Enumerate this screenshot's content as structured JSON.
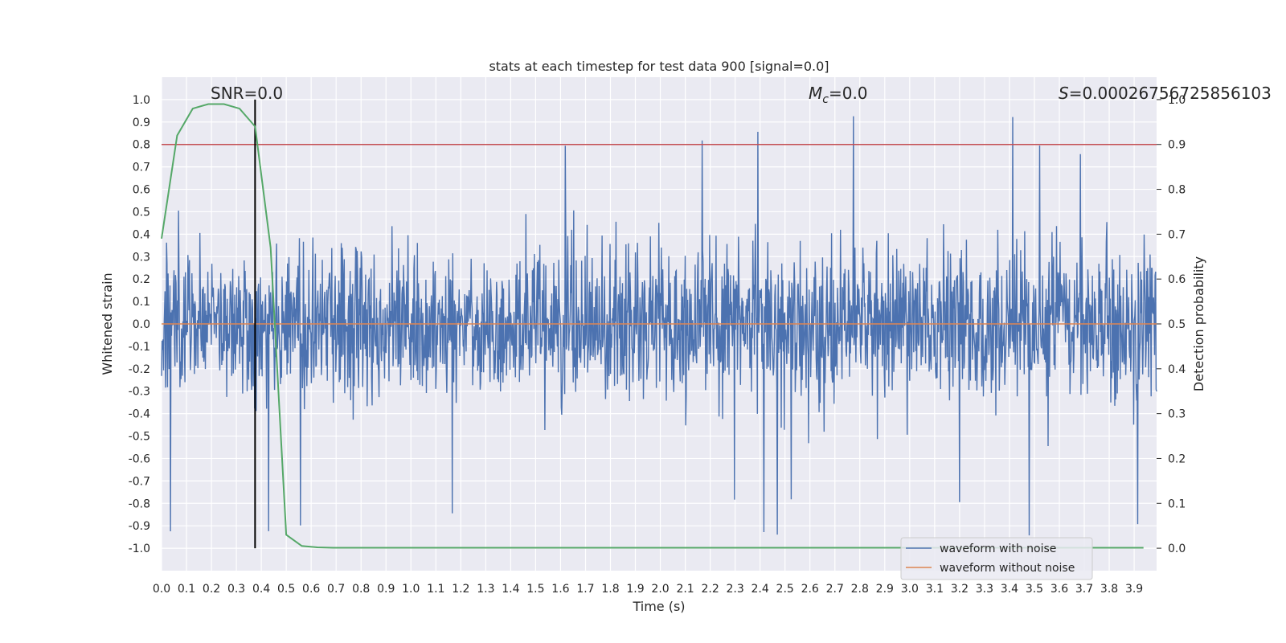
{
  "chart_data": {
    "type": "line",
    "title": "stats at each timestep for test data 900 [signal=0.0]",
    "xlabel": "Time (s)",
    "ylabel": "Whitened strain",
    "y2label": "Detection probability",
    "xlim": [
      0.0,
      3.99
    ],
    "ylim": [
      -1.1,
      1.1
    ],
    "y2lim": [
      -0.05,
      1.05
    ],
    "x_ticks": [
      "0.0",
      "0.1",
      "0.2",
      "0.3",
      "0.4",
      "0.5",
      "0.6",
      "0.7",
      "0.8",
      "0.9",
      "1.0",
      "1.1",
      "1.2",
      "1.3",
      "1.4",
      "1.5",
      "1.6",
      "1.7",
      "1.8",
      "1.9",
      "2.0",
      "2.1",
      "2.2",
      "2.3",
      "2.4",
      "2.5",
      "2.6",
      "2.7",
      "2.8",
      "2.9",
      "3.0",
      "3.1",
      "3.2",
      "3.3",
      "3.4",
      "3.5",
      "3.6",
      "3.7",
      "3.8",
      "3.9"
    ],
    "y_ticks": [
      "1.0",
      "0.9",
      "0.8",
      "0.7",
      "0.6",
      "0.5",
      "0.4",
      "0.3",
      "0.2",
      "0.1",
      "0.0",
      "-0.1",
      "-0.2",
      "-0.3",
      "-0.4",
      "-0.5",
      "-0.6",
      "-0.7",
      "-0.8",
      "-0.9",
      "-1.0"
    ],
    "y2_ticks": [
      "1.0",
      "0.9",
      "0.8",
      "0.7",
      "0.6",
      "0.5",
      "0.4",
      "0.3",
      "0.2",
      "0.1",
      "0.0"
    ],
    "threshold_y2": 0.9,
    "marker_x": 0.375,
    "annotations": {
      "snr": "SNR=0.0",
      "mc_symbol": "M",
      "mc_sub": "c",
      "mc_value": "=0.0",
      "s_symbol": "S",
      "s_value": "=0.00026756725856103"
    },
    "series": [
      {
        "name": "waveform with noise",
        "color": "#4c72b0",
        "axis": "left",
        "kind": "noise",
        "n_samples": 2000,
        "amplitude_typical": 0.4,
        "amplitude_max": 1.0
      },
      {
        "name": "waveform without noise",
        "color": "#dd8452",
        "axis": "left",
        "values_constant": 0.0
      },
      {
        "name": "detection probability",
        "color": "#55a868",
        "axis": "right",
        "x": [
          0.0,
          0.0625,
          0.125,
          0.1875,
          0.25,
          0.3125,
          0.375,
          0.4375,
          0.5,
          0.5625,
          0.625,
          0.6875,
          0.75,
          1.0,
          2.0,
          3.0,
          3.9375
        ],
        "y": [
          0.69,
          0.92,
          0.98,
          0.99,
          0.99,
          0.98,
          0.94,
          0.67,
          0.03,
          0.005,
          0.002,
          0.001,
          0.001,
          0.001,
          0.001,
          0.001,
          0.001
        ]
      }
    ],
    "legend": {
      "position": "lower-right",
      "entries": [
        "waveform with noise",
        "waveform without noise"
      ]
    }
  }
}
